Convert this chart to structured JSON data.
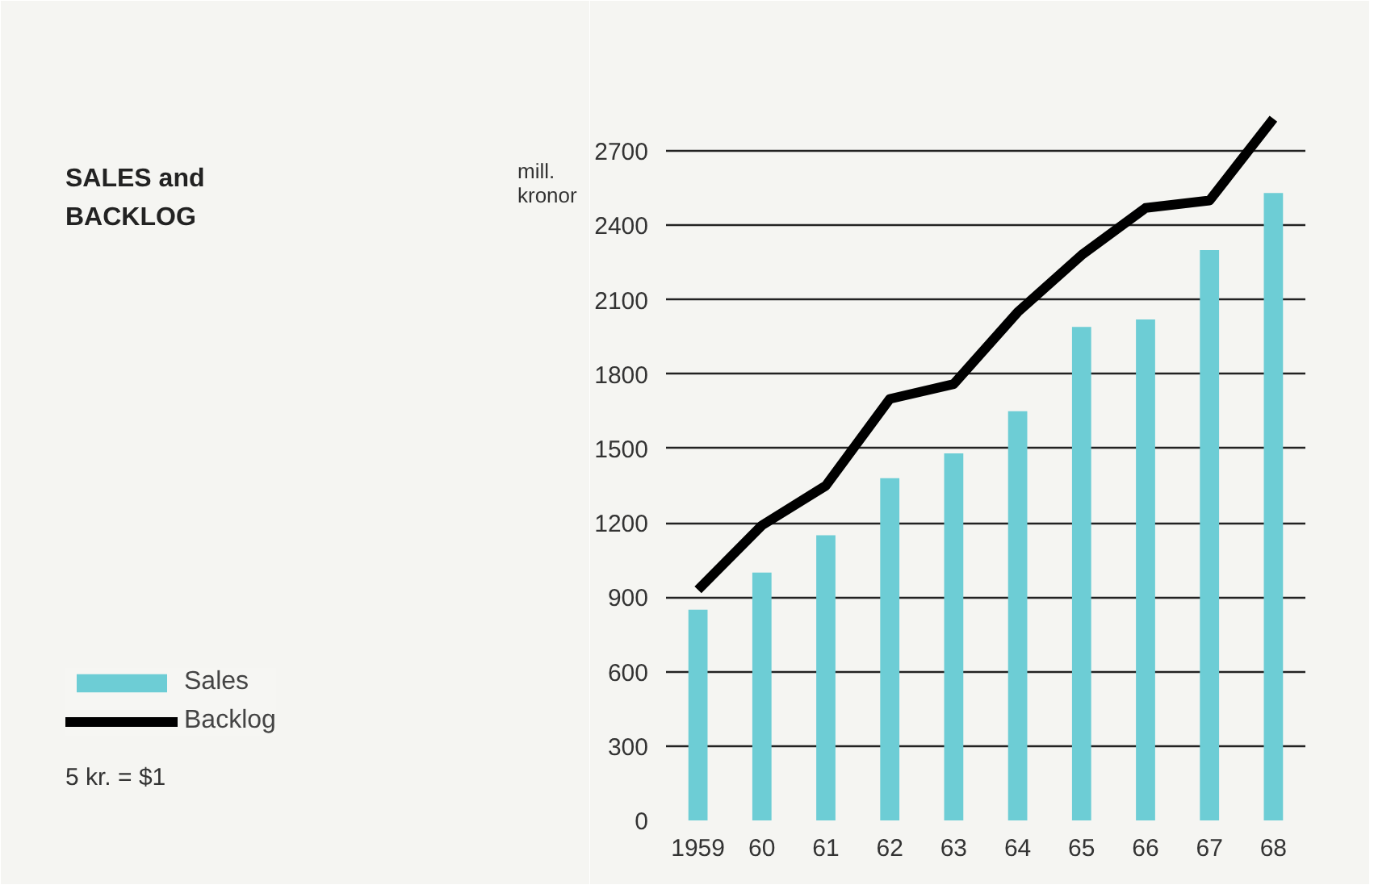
{
  "chart_data": {
    "type": "bar",
    "title": "SALES and BACKLOG",
    "ylabel": "mill. kronor",
    "categories": [
      "1959",
      "60",
      "61",
      "62",
      "63",
      "64",
      "65",
      "66",
      "67",
      "68"
    ],
    "series": [
      {
        "name": "Sales",
        "color": "#6dcdd5",
        "values": [
          850,
          1000,
          1150,
          1380,
          1480,
          1650,
          1990,
          2020,
          2300,
          2530
        ]
      },
      {
        "name": "Backlog",
        "type": "line",
        "color": "#000000",
        "values": [
          930,
          1190,
          1350,
          1700,
          1760,
          2050,
          2280,
          2470,
          2500,
          2830
        ]
      }
    ],
    "ylim": [
      0,
      2850
    ],
    "yticks": [
      0,
      300,
      600,
      900,
      1200,
      1500,
      1800,
      2100,
      2400,
      2700
    ],
    "grid": "y",
    "legend": "bottom left",
    "line_style": "solid",
    "marker": "none",
    "annotations": [
      "5 kr. = $1"
    ]
  }
}
